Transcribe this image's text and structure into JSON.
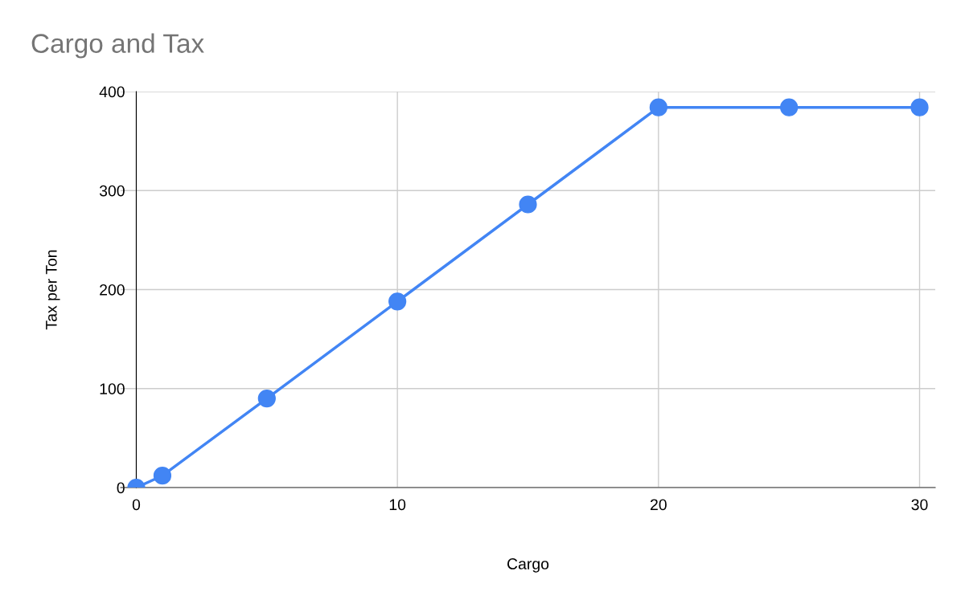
{
  "chart_data": {
    "type": "line",
    "title": "Cargo and Tax",
    "xlabel": "Cargo",
    "ylabel": "Tax per Ton",
    "x": [
      0,
      1,
      5,
      10,
      15,
      20,
      25,
      30
    ],
    "series": [
      {
        "color": "#4285f4",
        "values": [
          0,
          12,
          90,
          188,
          286,
          384,
          384,
          384
        ]
      }
    ],
    "xlim": [
      -0.6,
      30.6
    ],
    "xticks": [
      0,
      10,
      20,
      30
    ],
    "ylim": [
      0,
      400
    ],
    "yticks": [
      0,
      100,
      200,
      300,
      400
    ],
    "grid": true,
    "marker": "circle",
    "line_style": "solid"
  }
}
